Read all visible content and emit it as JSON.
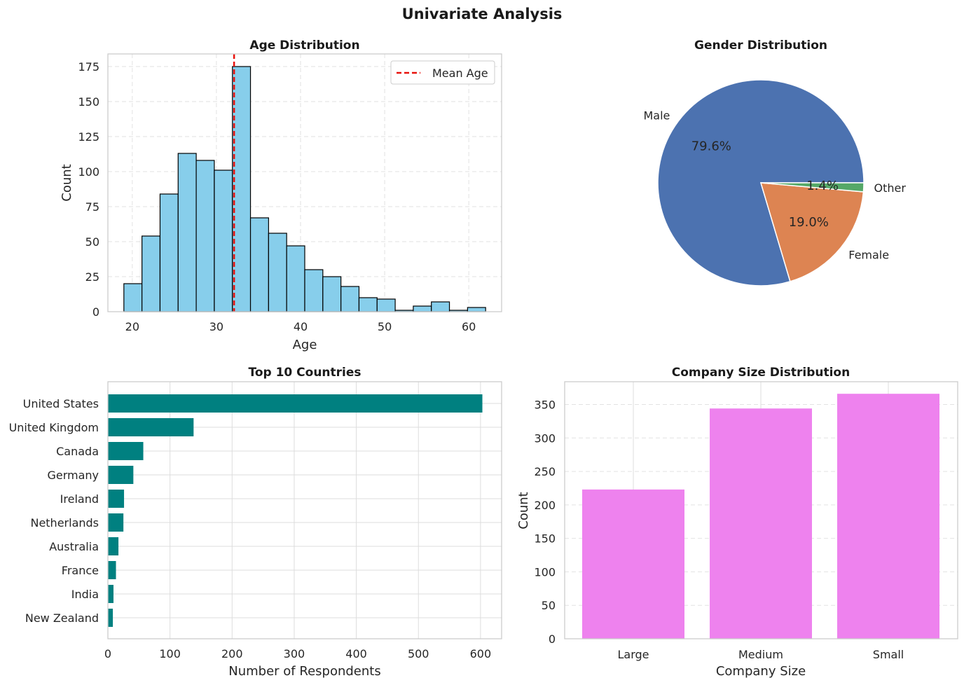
{
  "figure": {
    "title": "Univariate Analysis"
  },
  "chart_data": [
    {
      "type": "bar",
      "subtype": "histogram",
      "title": "Age Distribution",
      "xlabel": "Age",
      "ylabel": "Count",
      "bin_start": 19,
      "bin_width": 2.15,
      "counts": [
        20,
        54,
        84,
        113,
        108,
        101,
        175,
        67,
        56,
        47,
        30,
        25,
        18,
        10,
        9,
        1,
        4,
        7,
        1,
        3
      ],
      "xlim": [
        17.1,
        63.9
      ],
      "ylim": [
        0,
        184
      ],
      "xticks": [
        20,
        30,
        40,
        50,
        60
      ],
      "yticks": [
        0,
        25,
        50,
        75,
        100,
        125,
        150,
        175
      ],
      "mean_line": {
        "x": 32.1,
        "label": "Mean Age",
        "color": "#e8120c"
      },
      "legend": {
        "position": "top-right",
        "entries": [
          "Mean Age"
        ]
      },
      "bar_color": "#87ceeb",
      "edge_color": "#000000",
      "grid": "dashed"
    },
    {
      "type": "pie",
      "title": "Gender Distribution",
      "slices": [
        {
          "label": "Male",
          "value": 79.6,
          "pct": "79.6%",
          "color": "#4c72b0"
        },
        {
          "label": "Female",
          "value": 19.0,
          "pct": "19.0%",
          "color": "#dd8452"
        },
        {
          "label": "Other",
          "value": 1.4,
          "pct": "1.4%",
          "color": "#55a868"
        }
      ]
    },
    {
      "type": "bar",
      "orientation": "horizontal",
      "title": "Top 10 Countries",
      "xlabel": "Number of Respondents",
      "ylabel": "",
      "categories": [
        "United States",
        "United Kingdom",
        "Canada",
        "Germany",
        "Ireland",
        "Netherlands",
        "Australia",
        "France",
        "India",
        "New Zealand"
      ],
      "values": [
        603,
        138,
        57,
        41,
        26,
        25,
        17,
        13,
        9,
        8
      ],
      "xlim": [
        0,
        634
      ],
      "xticks": [
        0,
        100,
        200,
        300,
        400,
        500,
        600
      ],
      "color": "#008080",
      "grid": "solid"
    },
    {
      "type": "bar",
      "title": "Company Size Distribution",
      "xlabel": "Company Size",
      "ylabel": "Count",
      "categories": [
        "Large",
        "Medium",
        "Small"
      ],
      "values": [
        223,
        344,
        366
      ],
      "ylim": [
        0,
        384
      ],
      "yticks": [
        0,
        50,
        100,
        150,
        200,
        250,
        300,
        350
      ],
      "color": "#ee82ee",
      "grid": "dashed"
    }
  ]
}
